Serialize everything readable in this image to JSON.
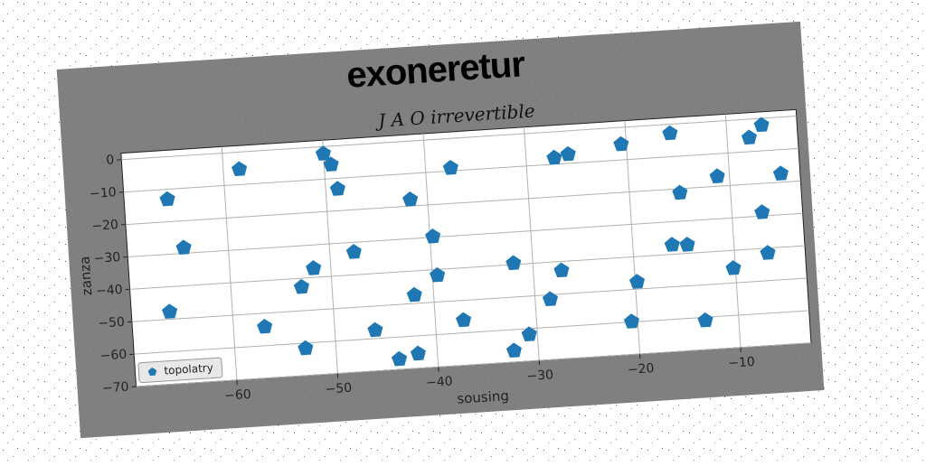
{
  "chart_data": {
    "type": "scatter",
    "title": "exoneretur",
    "subtitle": "J A O irrevertible",
    "x_label": "sousing",
    "y_label": "zanza",
    "xlim": [
      -70,
      -3
    ],
    "ylim": [
      -70,
      2
    ],
    "xticks": [
      {
        "value": -60,
        "label": "−60"
      },
      {
        "value": -50,
        "label": "−50"
      },
      {
        "value": -40,
        "label": "−40"
      },
      {
        "value": -30,
        "label": "−30"
      },
      {
        "value": -20,
        "label": "−20"
      },
      {
        "value": -10,
        "label": "−10"
      }
    ],
    "yticks": [
      0,
      {
        "value": -10,
        "label": "−10"
      },
      {
        "value": -20,
        "label": "−20"
      },
      {
        "value": -30,
        "label": "−30"
      },
      {
        "value": -40,
        "label": "−40"
      },
      {
        "value": -50,
        "label": "−50"
      },
      {
        "value": -60,
        "label": "−60"
      },
      {
        "value": -70,
        "label": "−70"
      }
    ],
    "grid": true,
    "legend": "lower left",
    "x": [
      -65.7,
      -58.4,
      -64.4,
      -66.2,
      -56.9,
      -53,
      -53,
      -51.7,
      -50,
      -49.3,
      -48.8,
      -47.6,
      -46,
      -43.8,
      -41.9,
      -41.9,
      -41.7,
      -39.7,
      -39.5,
      -37.5,
      -37.2,
      -32.4,
      -30.8,
      -31.9,
      -28.5,
      -27.2,
      -27.2,
      -25.8,
      -20.5,
      -20.6,
      -19.8,
      -15.6,
      -15,
      -16.1,
      -14.6,
      -13.3,
      -11.2,
      -10.2,
      -7.8,
      -6.5,
      -7,
      -6.7,
      -4.9
    ],
    "series": [
      {
        "name": "topolatry",
        "color": "#1f77b4",
        "values": [
          -13.1,
          -5.3,
          -28.3,
          -47.7,
          -54.2,
          -61.6,
          -42.7,
          -37.2,
          -2.2,
          -5.7,
          -13.3,
          -33,
          -57.4,
          -66.8,
          -65.5,
          -47.4,
          -18,
          -29.8,
          -41.8,
          -9.1,
          -56.1,
          -66.5,
          -61.8,
          -39.6,
          -51.4,
          -42.8,
          -8,
          -7.2,
          -5.2,
          -59.9,
          -47.8,
          -2.8,
          -21.3,
          -37.1,
          -37.4,
          -61,
          -17,
          -45.5,
          -5.7,
          -2.1,
          -28.9,
          -41.5,
          -17.4
        ]
      }
    ]
  }
}
